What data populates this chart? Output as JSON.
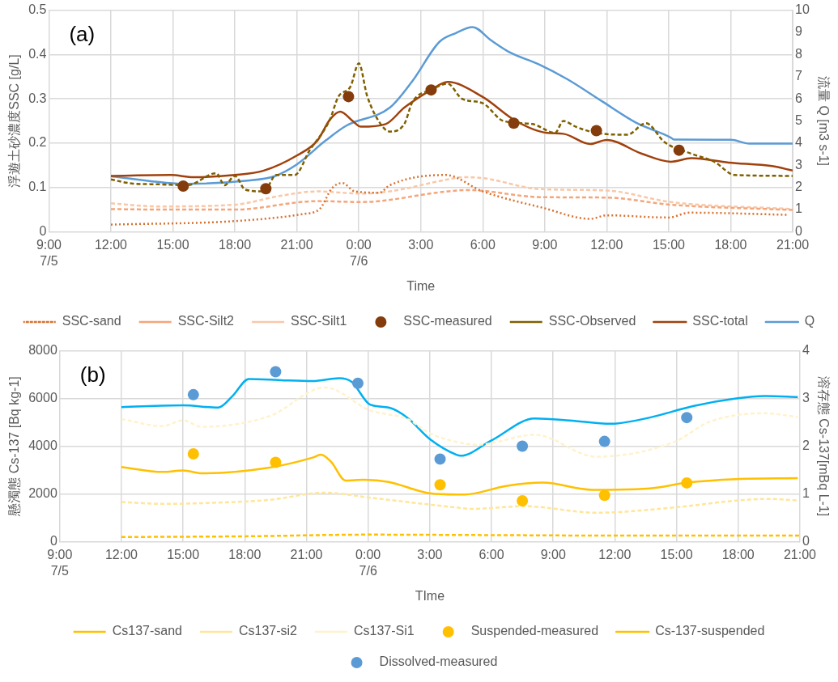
{
  "chart_data": [
    {
      "type": "line",
      "xlabel": "Time",
      "ylabel": "浮遊土砂濃度SSC [g/L]",
      "y2label": "流量 Q [m3 s-1]",
      "annotations": [
        "(a)"
      ],
      "xlim": [
        "--07-05T09:00",
        "--07-06T21:00"
      ],
      "xticks": [
        {
          "value": "--07-05T09:00",
          "label": "9:00\n7/5"
        },
        {
          "value": "--07-05T12:00",
          "label": "12:00"
        },
        {
          "value": "--07-05T15:00",
          "label": "15:00"
        },
        {
          "value": "--07-05T18:00",
          "label": "18:00"
        },
        {
          "value": "--07-05T21:00",
          "label": "21:00"
        },
        {
          "value": "--07-06T00:00",
          "label": "0:00\n7/6"
        },
        {
          "value": "--07-06T03:00",
          "label": "3:00"
        },
        {
          "value": "--07-06T06:00",
          "label": "6:00"
        },
        {
          "value": "--07-06T09:00",
          "label": "9:00"
        },
        {
          "value": "--07-06T12:00",
          "label": "12:00"
        },
        {
          "value": "--07-06T15:00",
          "label": "15:00"
        },
        {
          "value": "--07-06T18:00",
          "label": "18:00"
        },
        {
          "value": "--07-06T21:00",
          "label": "21:00"
        }
      ],
      "ylim": [
        0,
        0.5
      ],
      "yticks": [
        0,
        0.1,
        0.2,
        0.3,
        0.4,
        0.5
      ],
      "y2lim": [
        0,
        10
      ],
      "y2ticks": [
        0,
        1,
        2,
        3,
        4,
        5,
        6,
        7,
        8,
        9,
        10
      ],
      "grid": true,
      "legend": "bottom",
      "series": [
        {
          "name": "SSC-sand",
          "color": "#d9712f",
          "line_style": "dotted",
          "x": [
            "--07-05T12:00",
            "--07-05T18:00",
            "--07-05T21:18",
            "--07-05T22:06",
            "--07-05T22:42",
            "--07-05T23:12",
            "--07-05T23:48",
            "--07-06T01:00",
            "--07-06T01:30",
            "--07-06T04:12",
            "--07-06T06:00",
            "--07-06T08:54",
            "--07-06T11:12",
            "--07-06T12:00",
            "--07-06T15:00",
            "--07-06T16:00",
            "--07-06T20:48"
          ],
          "values": [
            0.016,
            0.024,
            0.04,
            0.051,
            0.098,
            0.11,
            0.091,
            0.088,
            0.105,
            0.128,
            0.091,
            0.054,
            0.029,
            0.037,
            0.032,
            0.043,
            0.038
          ]
        },
        {
          "name": "SSC-Silt2",
          "color": "#f4a57a",
          "line_style": "dashed",
          "x": [
            "--07-05T12:00",
            "--07-05T14:18",
            "--07-05T18:00",
            "--07-05T22:00",
            "--07-06T00:06",
            "--07-06T04:18",
            "--07-06T05:18",
            "--07-06T08:48",
            "--07-06T12:00",
            "--07-06T15:06",
            "--07-06T21:00"
          ],
          "values": [
            0.051,
            0.05,
            0.05,
            0.069,
            0.067,
            0.091,
            0.094,
            0.078,
            0.077,
            0.061,
            0.049
          ]
        },
        {
          "name": "SSC-Silt1",
          "color": "#f8c8a8",
          "line_style": "dashed",
          "x": [
            "--07-05T12:00",
            "--07-05T14:18",
            "--07-05T18:00",
            "--07-05T20:12",
            "--07-05T22:00",
            "--07-06T00:06",
            "--07-06T01:30",
            "--07-06T04:18",
            "--07-06T05:00",
            "--07-06T06:00",
            "--07-06T08:48",
            "--07-06T12:00",
            "--07-06T15:06",
            "--07-06T21:00"
          ],
          "values": [
            0.064,
            0.057,
            0.061,
            0.081,
            0.091,
            0.086,
            0.091,
            0.118,
            0.123,
            0.121,
            0.096,
            0.093,
            0.067,
            0.051
          ]
        },
        {
          "name": "SSC-measured",
          "type": "scatter",
          "marker": "circle",
          "color": "#843c0c",
          "x": [
            "--07-05T15:30",
            "--07-05T19:30",
            "--07-05T23:30",
            "--07-06T03:30",
            "--07-06T07:30",
            "--07-06T11:30",
            "--07-06T15:30"
          ],
          "values": [
            0.103,
            0.097,
            0.305,
            0.32,
            0.245,
            0.228,
            0.184
          ]
        },
        {
          "name": "SSC-Observed",
          "color": "#7f6000",
          "line_style": "dashed",
          "x": [
            "--07-05T12:00",
            "--07-05T13:00",
            "--07-05T14:18",
            "--07-05T15:42",
            "--07-05T17:06",
            "--07-05T17:30",
            "--07-05T18:00",
            "--07-05T18:30",
            "--07-05T19:24",
            "--07-05T20:00",
            "--07-05T20:54",
            "--07-05T21:36",
            "--07-05T22:36",
            "--07-05T23:00",
            "--07-05T23:36",
            "--07-06T00:00",
            "--07-06T00:24",
            "--07-06T01:00",
            "--07-06T01:30",
            "--07-06T02:12",
            "--07-06T02:36",
            "--07-06T03:30",
            "--07-06T04:18",
            "--07-06T05:00",
            "--07-06T06:00",
            "--07-06T07:00",
            "--07-06T08:24",
            "--07-06T09:30",
            "--07-06T09:54",
            "--07-06T10:30",
            "--07-06T11:30",
            "--07-06T13:00",
            "--07-06T13:54",
            "--07-06T14:48",
            "--07-06T16:06",
            "--07-06T17:12",
            "--07-06T18:12",
            "--07-06T21:00"
          ],
          "values": [
            0.118,
            0.109,
            0.107,
            0.105,
            0.132,
            0.105,
            0.126,
            0.095,
            0.091,
            0.128,
            0.128,
            0.182,
            0.253,
            0.304,
            0.328,
            0.38,
            0.307,
            0.247,
            0.226,
            0.243,
            0.293,
            0.32,
            0.334,
            0.3,
            0.29,
            0.25,
            0.243,
            0.223,
            0.25,
            0.237,
            0.223,
            0.219,
            0.245,
            0.202,
            0.176,
            0.158,
            0.128,
            0.126
          ]
        },
        {
          "name": "SSC-total",
          "color": "#a0410d",
          "line_style": "solid",
          "x": [
            "--07-05T12:00",
            "--07-05T14:54",
            "--07-05T16:00",
            "--07-05T18:00",
            "--07-05T19:24",
            "--07-05T21:00",
            "--07-05T22:00",
            "--07-05T22:36",
            "--07-05T23:06",
            "--07-05T23:42",
            "--07-06T00:06",
            "--07-06T01:18",
            "--07-06T02:12",
            "--07-06T03:30",
            "--07-06T04:18",
            "--07-06T06:00",
            "--07-06T07:36",
            "--07-06T09:06",
            "--07-06T09:54",
            "--07-06T11:12",
            "--07-06T12:00",
            "--07-06T13:42",
            "--07-06T15:06",
            "--07-06T16:06",
            "--07-06T17:54",
            "--07-06T20:00",
            "--07-06T21:00"
          ],
          "values": [
            0.126,
            0.128,
            0.123,
            0.128,
            0.138,
            0.172,
            0.206,
            0.253,
            0.271,
            0.25,
            0.237,
            0.243,
            0.28,
            0.32,
            0.338,
            0.304,
            0.25,
            0.223,
            0.221,
            0.198,
            0.207,
            0.176,
            0.158,
            0.166,
            0.156,
            0.148,
            0.138
          ]
        },
        {
          "name": "Q",
          "axis": "y2",
          "color": "#5b9bd5",
          "line_style": "solid",
          "x": [
            "--07-05T12:00",
            "--07-05T15:42",
            "--07-05T18:30",
            "--07-05T19:54",
            "--07-05T21:00",
            "--07-05T22:24",
            "--07-05T23:24",
            "--07-06T01:30",
            "--07-06T02:36",
            "--07-06T03:54",
            "--07-06T04:42",
            "--07-06T05:30",
            "--07-06T06:24",
            "--07-06T07:18",
            "--07-06T08:42",
            "--07-06T10:06",
            "--07-06T11:48",
            "--07-06T13:24",
            "--07-06T15:06",
            "--07-06T15:15",
            "--07-06T18:00",
            "--07-06T18:54",
            "--07-06T21:00"
          ],
          "values": [
            2.5,
            2.16,
            2.3,
            2.5,
            3.04,
            4.12,
            4.79,
            5.6,
            6.81,
            8.57,
            8.97,
            9.24,
            8.64,
            8.1,
            7.56,
            6.88,
            5.87,
            4.93,
            4.25,
            4.16,
            4.15,
            3.98,
            3.98
          ]
        }
      ]
    },
    {
      "type": "line",
      "xlabel": "TIme",
      "ylabel": "懸濁態 Cs-137 [Bq kg-1]",
      "y2label": "溶存態 Cs-137[mBq L-1]",
      "annotations": [
        "(b)"
      ],
      "xlim": [
        "--07-05T09:00",
        "--07-06T21:00"
      ],
      "xticks": [
        {
          "value": "--07-05T09:00",
          "label": "9:00\n7/5"
        },
        {
          "value": "--07-05T12:00",
          "label": "12:00"
        },
        {
          "value": "--07-05T15:00",
          "label": "15:00"
        },
        {
          "value": "--07-05T18:00",
          "label": "18:00"
        },
        {
          "value": "--07-05T21:00",
          "label": "21:00"
        },
        {
          "value": "--07-06T00:00",
          "label": "0:00\n7/6"
        },
        {
          "value": "--07-06T03:00",
          "label": "3:00"
        },
        {
          "value": "--07-06T06:00",
          "label": "6:00"
        },
        {
          "value": "--07-06T09:00",
          "label": "9:00"
        },
        {
          "value": "--07-06T12:00",
          "label": "12:00"
        },
        {
          "value": "--07-06T15:00",
          "label": "15:00"
        },
        {
          "value": "--07-06T18:00",
          "label": "18:00"
        },
        {
          "value": "--07-06T21:00",
          "label": "21:00"
        }
      ],
      "ylim": [
        0,
        8000
      ],
      "yticks": [
        0,
        2000,
        4000,
        6000,
        8000
      ],
      "y2lim": [
        0,
        4
      ],
      "y2ticks": [
        0,
        1,
        2,
        3,
        4
      ],
      "grid": true,
      "legend": "bottom",
      "series": [
        {
          "name": "Cs137-sand",
          "color": "#ffc000",
          "line_style": "dashed",
          "x": [
            "--07-05T12:00",
            "--07-05T18:00",
            "--07-06T00:00",
            "--07-06T06:00",
            "--07-06T12:00",
            "--07-06T21:00"
          ],
          "values": [
            190,
            220,
            290,
            270,
            250,
            250
          ]
        },
        {
          "name": "Cs137-si2",
          "color": "#ffe699",
          "line_style": "dashed",
          "x": [
            "--07-05T12:00",
            "--07-05T14:00",
            "--07-05T15:54",
            "--07-05T19:12",
            "--07-05T21:54",
            "--07-06T00:06",
            "--07-06T03:00",
            "--07-06T04:18",
            "--07-06T05:00",
            "--07-06T07:36",
            "--07-06T11:06",
            "--07-06T14:54",
            "--07-06T17:54",
            "--07-06T19:30",
            "--07-06T20:54"
          ],
          "values": [
            1660,
            1580,
            1610,
            1750,
            2050,
            1840,
            1550,
            1430,
            1370,
            1480,
            1210,
            1430,
            1720,
            1790,
            1720
          ]
        },
        {
          "name": "Cs137-Si1",
          "color": "#fff2cc",
          "line_style": "dashed",
          "x": [
            "--07-05T12:00",
            "--07-05T14:00",
            "--07-05T15:00",
            "--07-05T15:54",
            "--07-05T19:12",
            "--07-05T21:54",
            "--07-06T00:06",
            "--07-06T01:54",
            "--07-06T03:00",
            "--07-06T04:18",
            "--07-06T05:18",
            "--07-06T08:06",
            "--07-06T11:06",
            "--07-06T14:54",
            "--07-06T16:36",
            "--07-06T19:18",
            "--07-06T20:54"
          ],
          "values": [
            5140,
            4840,
            5080,
            4810,
            5260,
            6460,
            5500,
            5140,
            4540,
            4180,
            4060,
            4480,
            3560,
            4180,
            5020,
            5380,
            5220
          ]
        },
        {
          "name": "Suspended-measured",
          "type": "scatter",
          "marker": "circle",
          "color": "#ffc000",
          "x": [
            "--07-05T15:30",
            "--07-05T19:30",
            "--07-06T03:30",
            "--07-06T07:30",
            "--07-06T11:30",
            "--07-06T15:30"
          ],
          "values": [
            3680,
            3320,
            2380,
            1710,
            1940,
            2460
          ]
        },
        {
          "name": "Cs-137-suspended",
          "color": "#ffc000",
          "line_style": "solid",
          "x": [
            "--07-05T12:00",
            "--07-05T14:00",
            "--07-05T15:00",
            "--07-05T15:54",
            "--07-05T19:12",
            "--07-05T21:18",
            "--07-05T21:42",
            "--07-05T22:12",
            "--07-05T22:54",
            "--07-05T23:48",
            "--07-06T01:00",
            "--07-06T03:00",
            "--07-06T04:18",
            "--07-06T04:42",
            "--07-06T06:42",
            "--07-06T08:30",
            "--07-06T10:54",
            "--07-06T13:42",
            "--07-06T15:30",
            "--07-06T17:54",
            "--07-06T20:54"
          ],
          "values": [
            3130,
            2920,
            2980,
            2860,
            3100,
            3520,
            3640,
            3340,
            2560,
            2590,
            2500,
            2020,
            1970,
            1970,
            2330,
            2470,
            2170,
            2230,
            2470,
            2620,
            2660
          ]
        },
        {
          "name": "Dissolved-measured",
          "type": "scatter",
          "marker": "circle",
          "axis": "y2",
          "color": "#5b9bd5",
          "x": [
            "--07-05T15:30",
            "--07-05T19:30",
            "--07-05T23:30",
            "--07-06T03:30",
            "--07-06T07:30",
            "--07-06T11:30",
            "--07-06T15:30"
          ],
          "values": [
            3.08,
            3.56,
            3.32,
            1.73,
            2.0,
            2.1,
            2.6
          ]
        },
        {
          "color": "#00b0f0",
          "line_style": "solid",
          "x": [
            "--07-05T12:00",
            "--07-05T15:00",
            "--07-05T16:42",
            "--07-05T17:24",
            "--07-05T18:12",
            "--07-05T19:54",
            "--07-05T21:18",
            "--07-05T22:36",
            "--07-05T23:12",
            "--07-06T00:06",
            "--07-06T01:00",
            "--07-06T01:54",
            "--07-06T03:00",
            "--07-06T04:18",
            "--07-06T04:30",
            "--07-06T06:00",
            "--07-06T08:06",
            "--07-06T09:48",
            "--07-06T11:48",
            "--07-06T13:42",
            "--07-06T15:48",
            "--07-06T17:54",
            "--07-06T19:18",
            "--07-06T20:54"
          ],
          "values": [
            5640,
            5710,
            5620,
            6100,
            6820,
            6760,
            6730,
            6850,
            6700,
            5740,
            5620,
            5200,
            4300,
            3640,
            3600,
            4240,
            5160,
            5080,
            4940,
            5200,
            5680,
            6000,
            6100,
            6060
          ]
        }
      ]
    }
  ]
}
